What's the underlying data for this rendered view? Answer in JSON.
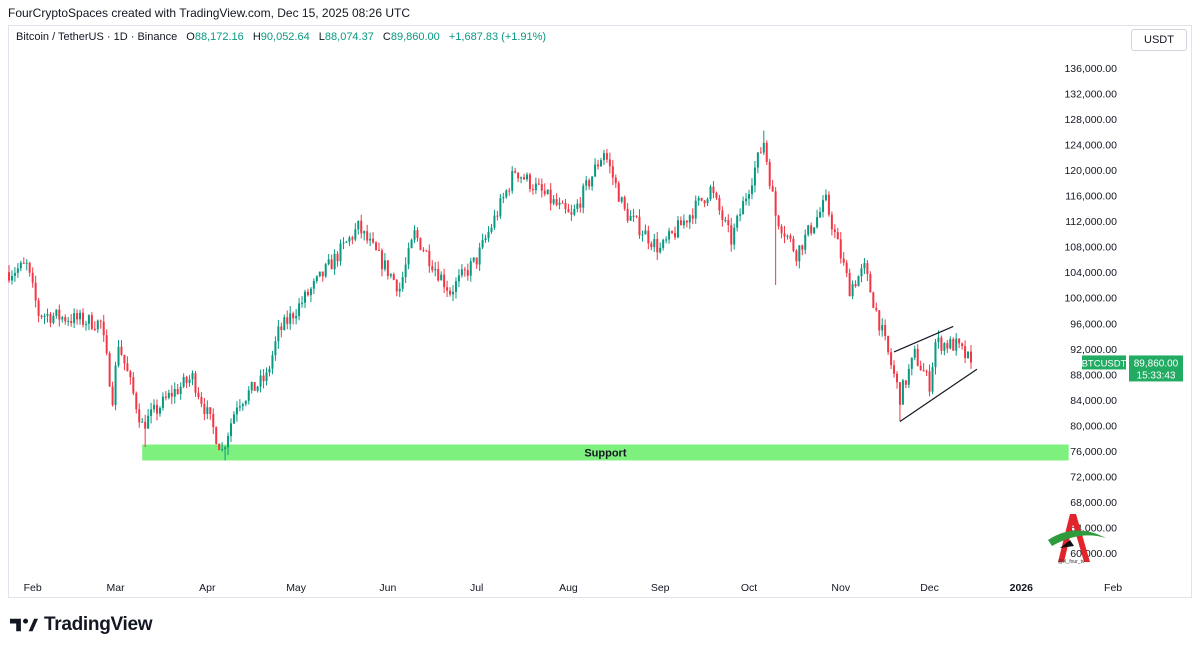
{
  "header": {
    "caption": "FourCryptoSpaces created with TradingView.com, Dec 15, 2025 08:26 UTC"
  },
  "legend": {
    "symbol": "Bitcoin / TetherUS · 1D · Binance",
    "open_label": "O",
    "open": "88,172.16",
    "high_label": "H",
    "high": "90,052.64",
    "low_label": "L",
    "low": "88,074.37",
    "close_label": "C",
    "close": "89,860.00",
    "change": "+1,687.83 (+1.91%)"
  },
  "currency": "USDT",
  "price_tag": {
    "ticker": "BTCUSDT",
    "price": "89,860.00",
    "countdown": "15:33:43"
  },
  "support_label": "Support",
  "watermark_handle": "@X_four_tv",
  "brand": "TradingView",
  "colors": {
    "up": "#089981",
    "down": "#f23645",
    "support": "#7ef07e",
    "tag": "#22ab63"
  },
  "icons": {
    "brand_logo": "tradingview-logo-icon",
    "watermark": "a-letter-logo-icon"
  },
  "chart_data": {
    "type": "candlestick",
    "title": "Bitcoin / TetherUS · 1D · Binance",
    "price_scale": "linear",
    "ylim": [
      58000,
      138000
    ],
    "y_ticks": [
      "136,000.00",
      "132,000.00",
      "128,000.00",
      "124,000.00",
      "120,000.00",
      "116,000.00",
      "112,000.00",
      "108,000.00",
      "104,000.00",
      "100,000.00",
      "96,000.00",
      "92,000.00",
      "88,000.00",
      "84,000.00",
      "80,000.00",
      "76,000.00",
      "72,000.00",
      "68,000.00",
      "64,000.00",
      "60,000.00"
    ],
    "x_ticks": [
      "Feb",
      "Mar",
      "Apr",
      "May",
      "Jun",
      "Jul",
      "Aug",
      "Sep",
      "Oct",
      "Nov",
      "Dec",
      "2026",
      "Feb"
    ],
    "x_range": [
      "2025-01-24",
      "2026-02-01"
    ],
    "series": [
      {
        "keypoints": [
          {
            "date": "2025-01-24",
            "close": 104000
          },
          {
            "date": "2025-01-30",
            "close": 105000
          },
          {
            "date": "2025-02-03",
            "close": 97500
          },
          {
            "date": "2025-02-24",
            "close": 96000
          },
          {
            "date": "2025-02-28",
            "close": 84500
          },
          {
            "date": "2025-03-02",
            "close": 93000
          },
          {
            "date": "2025-03-10",
            "close": 80000
          },
          {
            "date": "2025-03-20",
            "close": 85000
          },
          {
            "date": "2025-03-27",
            "close": 87500
          },
          {
            "date": "2025-04-06",
            "close": 76000
          },
          {
            "date": "2025-04-11",
            "close": 83500
          },
          {
            "date": "2025-04-21",
            "close": 87500
          },
          {
            "date": "2025-04-25",
            "close": 94500
          },
          {
            "date": "2025-05-09",
            "close": 103000
          },
          {
            "date": "2025-05-22",
            "close": 111000
          },
          {
            "date": "2025-06-05",
            "close": 101500
          },
          {
            "date": "2025-06-10",
            "close": 110000
          },
          {
            "date": "2025-06-22",
            "close": 101000
          },
          {
            "date": "2025-07-01",
            "close": 106000
          },
          {
            "date": "2025-07-10",
            "close": 115500
          },
          {
            "date": "2025-07-14",
            "close": 120000
          },
          {
            "date": "2025-08-02",
            "close": 112500
          },
          {
            "date": "2025-08-13",
            "close": 123000
          },
          {
            "date": "2025-08-20",
            "close": 113500
          },
          {
            "date": "2025-09-01",
            "close": 107500
          },
          {
            "date": "2025-09-18",
            "close": 117000
          },
          {
            "date": "2025-09-25",
            "close": 109000
          },
          {
            "date": "2025-10-06",
            "close": 124500
          },
          {
            "date": "2025-10-10",
            "close": 113000
          },
          {
            "date": "2025-10-17",
            "close": 107000
          },
          {
            "date": "2025-10-27",
            "close": 115000
          },
          {
            "date": "2025-11-04",
            "close": 101500
          },
          {
            "date": "2025-11-09",
            "close": 104500
          },
          {
            "date": "2025-11-21",
            "close": 84500
          },
          {
            "date": "2025-11-26",
            "close": 91000
          },
          {
            "date": "2025-12-01",
            "close": 86500
          },
          {
            "date": "2025-12-03",
            "close": 93000
          },
          {
            "date": "2025-12-10",
            "close": 92500
          },
          {
            "date": "2025-12-15",
            "close": 89860
          }
        ],
        "notable_wicks": [
          {
            "date": "2025-03-11",
            "low": 76600
          },
          {
            "date": "2025-04-07",
            "low": 74500
          },
          {
            "date": "2025-10-06",
            "high": 126200
          },
          {
            "date": "2025-10-10",
            "low": 102000
          },
          {
            "date": "2025-11-21",
            "low": 80600
          }
        ]
      }
    ],
    "support_zone": {
      "label": "Support",
      "from": 74500,
      "to": 77000,
      "start": "2025-03-10",
      "end": "2026-01-17"
    },
    "channel": [
      {
        "from": {
          "date": "2025-11-19",
          "price": 91500
        },
        "to": {
          "date": "2025-12-09",
          "price": 95500
        }
      },
      {
        "from": {
          "date": "2025-11-21",
          "price": 80600
        },
        "to": {
          "date": "2025-12-17",
          "price": 88800
        }
      }
    ],
    "last_price": 89860
  }
}
